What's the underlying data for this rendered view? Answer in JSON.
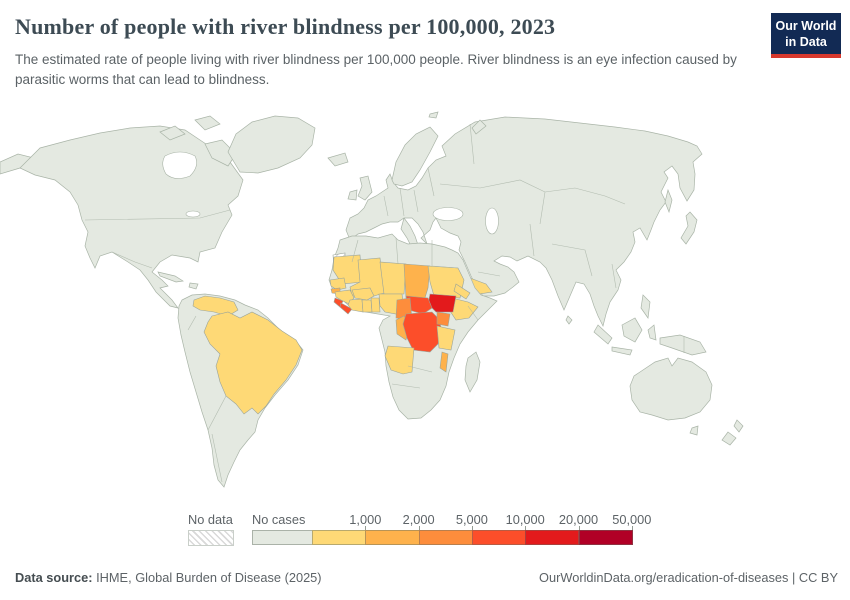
{
  "header": {
    "title": "Number of people with river blindness per 100,000, 2023",
    "subtitle": "The estimated rate of people living with river blindness per 100,000 people. River blindness is an eye infection caused by parasitic worms that can lead to blindness.",
    "logo": {
      "line1": "Our World",
      "line2": "in Data",
      "bg": "#122a54",
      "accent": "#d7382d"
    }
  },
  "legend": {
    "no_data": {
      "label": "No data"
    },
    "bins": [
      {
        "label": "No cases",
        "color": "#e4e9e1"
      },
      {
        "label": "1,000",
        "color": "#fed976"
      },
      {
        "label": "2,000",
        "color": "#feb24c"
      },
      {
        "label": "5,000",
        "color": "#fd8d3c"
      },
      {
        "label": "10,000",
        "color": "#fc4e2a"
      },
      {
        "label": "20,000",
        "color": "#e31a1c"
      },
      {
        "label": "50,000",
        "color": "#b10026"
      }
    ]
  },
  "map": {
    "ocean": "#ffffff",
    "land_fill": "#e4e9e1",
    "land_stroke": "#a9b4a7",
    "regions": {
      "brazil": 1,
      "venezuela": 1,
      "mauritania": 1,
      "senegal": 1,
      "guinea": 1,
      "cote-divoire": 1,
      "ghana": 1,
      "togo-benin": 1,
      "burkina-faso": 1,
      "mali": 1,
      "niger": 1,
      "nigeria": 1,
      "sudan": 1,
      "eritrea": 1,
      "ethiopia": 1,
      "yemen": 1,
      "tanzania": 1,
      "angola": 1,
      "guinea-bissau": 2,
      "chad": 2,
      "congo": 2,
      "malawi": 2,
      "cameroon": 3,
      "uganda": 3,
      "sierra-leone": 4,
      "liberia": 4,
      "central-african-republic": 4,
      "dr-congo": 4,
      "south-sudan": 5
    }
  },
  "footer": {
    "source_label": "Data source:",
    "source_text": " IHME, Global Burden of Disease (2025)",
    "link": "OurWorldinData.org/eradication-of-diseases",
    "separator": " | ",
    "license": "CC BY"
  },
  "chart_data": {
    "type": "heatmap",
    "subtype": "choropleth-world-map",
    "title": "Number of people with river blindness per 100,000, 2023",
    "unit": "people with river blindness per 100,000",
    "bin_edges": [
      "No cases",
      "1,000",
      "2,000",
      "5,000",
      "10,000",
      "20,000",
      "50,000"
    ],
    "bin_colors": [
      "#e4e9e1",
      "#fed976",
      "#feb24c",
      "#fd8d3c",
      "#fc4e2a",
      "#e31a1c",
      "#b10026"
    ],
    "legend_position": "bottom",
    "no_data_regions": [
      "Western Sahara"
    ],
    "regions_by_bin": {
      "0-1,000": [
        "Brazil",
        "Venezuela",
        "Mauritania",
        "Senegal",
        "Guinea",
        "Cote d'Ivoire",
        "Ghana",
        "Togo",
        "Benin",
        "Burkina Faso",
        "Mali",
        "Niger",
        "Nigeria",
        "Sudan",
        "Eritrea",
        "Ethiopia",
        "Yemen",
        "Tanzania",
        "Angola"
      ],
      "1,000-2,000": [
        "Guinea-Bissau",
        "Chad",
        "Congo",
        "Malawi"
      ],
      "2,000-5,000": [
        "Cameroon",
        "Uganda"
      ],
      "5,000-10,000": [
        "Sierra Leone",
        "Liberia",
        "Central African Republic",
        "Democratic Republic of Congo"
      ],
      "10,000-20,000": [
        "South Sudan"
      ],
      "20,000-50,000": [],
      "no_cases": [
        "All other countries shown in pale green-grey"
      ]
    }
  }
}
